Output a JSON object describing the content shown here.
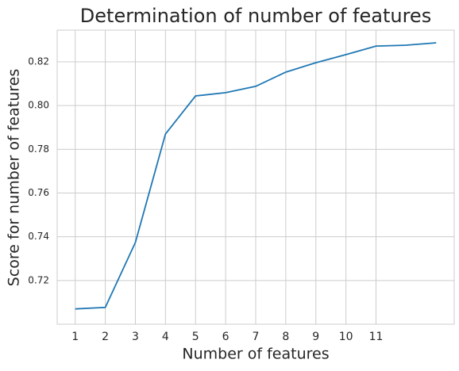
{
  "chart_data": {
    "type": "line",
    "title": "Determination of number of features",
    "x_label": "Number of features",
    "y_label": "Score for number of features",
    "x": [
      1,
      2,
      3,
      4,
      5,
      6,
      7,
      8,
      9,
      10,
      11,
      12,
      13
    ],
    "series": [
      {
        "color": "#1f77b4",
        "values": [
          0.707,
          0.7077,
          0.7374,
          0.787,
          0.8044,
          0.8059,
          0.8088,
          0.8153,
          0.8196,
          0.8233,
          0.8272,
          0.8276,
          0.8287
        ]
      }
    ],
    "xlim": [
      0.4,
      13.6
    ],
    "xticks": [
      1,
      2,
      3,
      4,
      5,
      6,
      7,
      8,
      9,
      10,
      11
    ],
    "ylim": [
      0.7,
      0.8345
    ],
    "yticks": [
      0.72,
      0.74,
      0.76,
      0.78,
      {
        "value": 0.8,
        "label": "0.80"
      },
      0.82
    ],
    "grid": true
  }
}
